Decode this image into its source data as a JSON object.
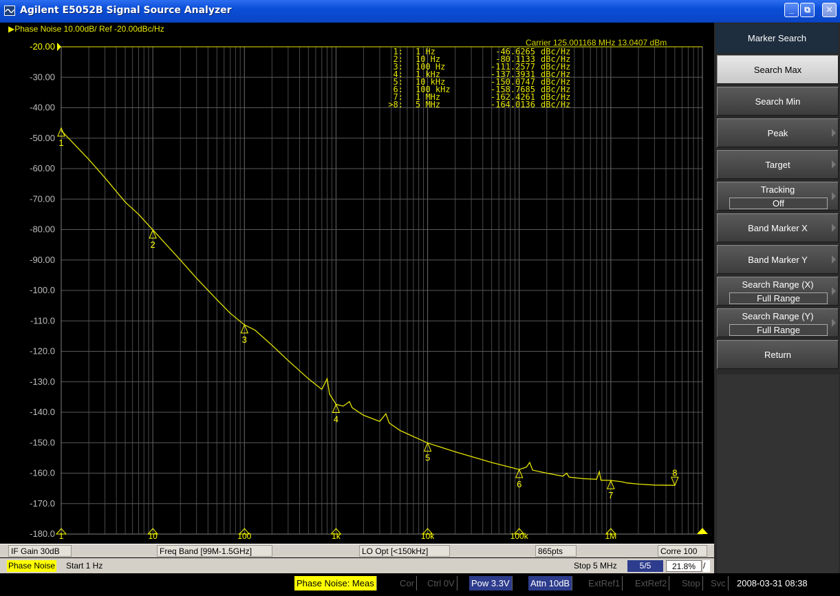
{
  "window": {
    "title": "Agilent E5052B Signal Source Analyzer",
    "buttons": {
      "minimize": "_",
      "restore": "⧉",
      "close": "✕"
    }
  },
  "chart": {
    "header": "▶Phase Noise 10.00dB/ Ref -20.00dBc/Hz",
    "carrier": "Carrier 125.001168 MHz    13.0407 dBm",
    "ref_marker_label": "-20.00 ▶",
    "marker_table": [
      {
        "id": "1:",
        "freq": "1 Hz",
        "value": "-46.6265",
        "unit": "dBc/Hz"
      },
      {
        "id": "2:",
        "freq": "10 Hz",
        "value": "-80.1133",
        "unit": "dBc/Hz"
      },
      {
        "id": "3:",
        "freq": "100 Hz",
        "value": "-111.2577",
        "unit": "dBc/Hz"
      },
      {
        "id": "4:",
        "freq": "1 kHz",
        "value": "-137.3931",
        "unit": "dBc/Hz"
      },
      {
        "id": "5:",
        "freq": "10 kHz",
        "value": "-150.0747",
        "unit": "dBc/Hz"
      },
      {
        "id": "6:",
        "freq": "100 kHz",
        "value": "-158.7685",
        "unit": "dBc/Hz"
      },
      {
        "id": "7:",
        "freq": "1 MHz",
        "value": "-162.4261",
        "unit": "dBc/Hz"
      },
      {
        "id": ">8:",
        "freq": "5 MHz",
        "value": "-164.0136",
        "unit": "dBc/Hz"
      }
    ]
  },
  "chart_data": {
    "type": "line",
    "x_scale": "log",
    "xlim": [
      1,
      10000000
    ],
    "ylim": [
      -180,
      -20
    ],
    "y_ticks": [
      "-20.00",
      "-30.00",
      "-40.00",
      "-50.00",
      "-60.00",
      "-70.00",
      "-80.00",
      "-90.00",
      "-100.0",
      "-110.0",
      "-120.0",
      "-130.0",
      "-140.0",
      "-150.0",
      "-160.0",
      "-170.0",
      "-180.0"
    ],
    "x_tick_labels": [
      "1",
      "10",
      "100",
      "1k",
      "10k",
      "100k",
      "1M"
    ],
    "grid": true,
    "series": [
      {
        "color": "#e6e600",
        "points": [
          [
            1,
            -47.5
          ],
          [
            2,
            -57
          ],
          [
            3,
            -63
          ],
          [
            5,
            -71
          ],
          [
            7,
            -75
          ],
          [
            10,
            -80.1
          ],
          [
            20,
            -90
          ],
          [
            30,
            -96
          ],
          [
            50,
            -103
          ],
          [
            70,
            -107.5
          ],
          [
            100,
            -111.3
          ],
          [
            130,
            -113
          ],
          [
            200,
            -118
          ],
          [
            300,
            -123
          ],
          [
            500,
            -129
          ],
          [
            700,
            -132.5
          ],
          [
            800,
            -129
          ],
          [
            850,
            -134
          ],
          [
            1000,
            -137.4
          ],
          [
            1200,
            -138
          ],
          [
            1400,
            -136.5
          ],
          [
            1500,
            -138.5
          ],
          [
            2000,
            -141
          ],
          [
            3000,
            -143
          ],
          [
            3500,
            -140.5
          ],
          [
            3800,
            -143.5
          ],
          [
            5000,
            -146
          ],
          [
            10000,
            -150.1
          ],
          [
            20000,
            -153
          ],
          [
            50000,
            -156.5
          ],
          [
            100000,
            -158.8
          ],
          [
            120000,
            -158
          ],
          [
            130000,
            -156.5
          ],
          [
            140000,
            -159
          ],
          [
            200000,
            -160
          ],
          [
            300000,
            -161
          ],
          [
            330000,
            -160
          ],
          [
            350000,
            -161.3
          ],
          [
            500000,
            -161.8
          ],
          [
            700000,
            -162
          ],
          [
            750000,
            -159.5
          ],
          [
            780000,
            -162.3
          ],
          [
            1000000,
            -162.4
          ],
          [
            1300000,
            -162.8
          ],
          [
            1500000,
            -163.2
          ],
          [
            2000000,
            -163.6
          ],
          [
            3000000,
            -163.9
          ],
          [
            5000000,
            -164.0
          ]
        ]
      }
    ],
    "markers": [
      {
        "label": "1",
        "x": 1,
        "y": -46.6265
      },
      {
        "label": "2",
        "x": 10,
        "y": -80.1133
      },
      {
        "label": "3",
        "x": 100,
        "y": -111.2577
      },
      {
        "label": "4",
        "x": 1000,
        "y": -137.3931
      },
      {
        "label": "5",
        "x": 10000,
        "y": -150.0747
      },
      {
        "label": "6",
        "x": 100000,
        "y": -158.7685
      },
      {
        "label": "7",
        "x": 1000000,
        "y": -162.4261
      },
      {
        "label": "8",
        "x": 5000000,
        "y": -164.0136
      }
    ]
  },
  "info_bar": {
    "if_gain": "IF Gain 30dB",
    "freq_band": "Freq Band [99M-1.5GHz]",
    "lo_opt": "LO Opt [<150kHz]",
    "points": "865pts",
    "corre": "Corre 100"
  },
  "sweep_bar": {
    "meas": "Phase Noise",
    "start": "Start 1 Hz",
    "stop": "Stop 5 MHz",
    "page": "5/5",
    "progress": "21.8%",
    "slash": "/"
  },
  "status_bar": {
    "meas": "Phase Noise: Meas",
    "cor": "Cor",
    "ctrl": "Ctrl  0V",
    "pow": "Pow  3.3V",
    "attn": "Attn 10dB",
    "extref1": "ExtRef1",
    "extref2": "ExtRef2",
    "stop": "Stop",
    "svc": "Svc",
    "datetime": "2008-03-31 08:38"
  },
  "softkeys": {
    "title": "Marker Search",
    "items": [
      {
        "label": "Search Max"
      },
      {
        "label": "Search Min"
      },
      {
        "label": "Peak"
      },
      {
        "label": "Target"
      },
      {
        "label": "Tracking",
        "value": "Off"
      },
      {
        "label": "Band Marker X"
      },
      {
        "label": "Band Marker Y"
      },
      {
        "label": "Search Range (X)",
        "value": "Full Range"
      },
      {
        "label": "Search Range (Y)",
        "value": "Full Range"
      },
      {
        "label": "Return"
      }
    ]
  },
  "colors": {
    "trace": "#e6e600",
    "grid": "#5a5a5a",
    "softkey_active": "#d8d8d8"
  }
}
